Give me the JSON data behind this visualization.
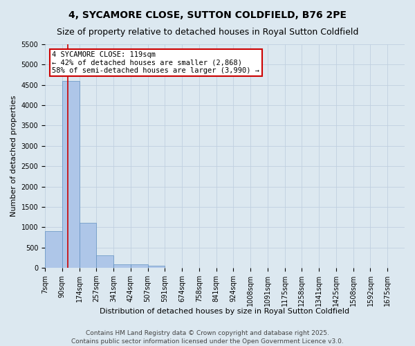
{
  "title": "4, SYCAMORE CLOSE, SUTTON COLDFIELD, B76 2PE",
  "subtitle": "Size of property relative to detached houses in Royal Sutton Coldfield",
  "xlabel": "Distribution of detached houses by size in Royal Sutton Coldfield",
  "ylabel": "Number of detached properties",
  "categories": [
    "7sqm",
    "90sqm",
    "174sqm",
    "257sqm",
    "341sqm",
    "424sqm",
    "507sqm",
    "591sqm",
    "674sqm",
    "758sqm",
    "841sqm",
    "924sqm",
    "1008sqm",
    "1091sqm",
    "1175sqm",
    "1258sqm",
    "1341sqm",
    "1425sqm",
    "1508sqm",
    "1592sqm",
    "1675sqm"
  ],
  "values": [
    900,
    4600,
    1100,
    300,
    80,
    80,
    50,
    0,
    0,
    0,
    0,
    0,
    0,
    0,
    0,
    0,
    0,
    0,
    0,
    0,
    0
  ],
  "bar_color": "#aec6e8",
  "bar_edge_color": "#6090c0",
  "grid_color": "#c0d0e0",
  "background_color": "#dce8f0",
  "annotation_text": "4 SYCAMORE CLOSE: 119sqm\n← 42% of detached houses are smaller (2,868)\n58% of semi-detached houses are larger (3,990) →",
  "annotation_box_color": "#cc0000",
  "vline_color": "#cc0000",
  "ylim": [
    0,
    5500
  ],
  "yticks": [
    0,
    500,
    1000,
    1500,
    2000,
    2500,
    3000,
    3500,
    4000,
    4500,
    5000,
    5500
  ],
  "footer_line1": "Contains HM Land Registry data © Crown copyright and database right 2025.",
  "footer_line2": "Contains public sector information licensed under the Open Government Licence v3.0.",
  "title_fontsize": 10,
  "subtitle_fontsize": 9,
  "xlabel_fontsize": 8,
  "ylabel_fontsize": 8,
  "tick_fontsize": 7,
  "annotation_fontsize": 7.5,
  "footer_fontsize": 6.5
}
